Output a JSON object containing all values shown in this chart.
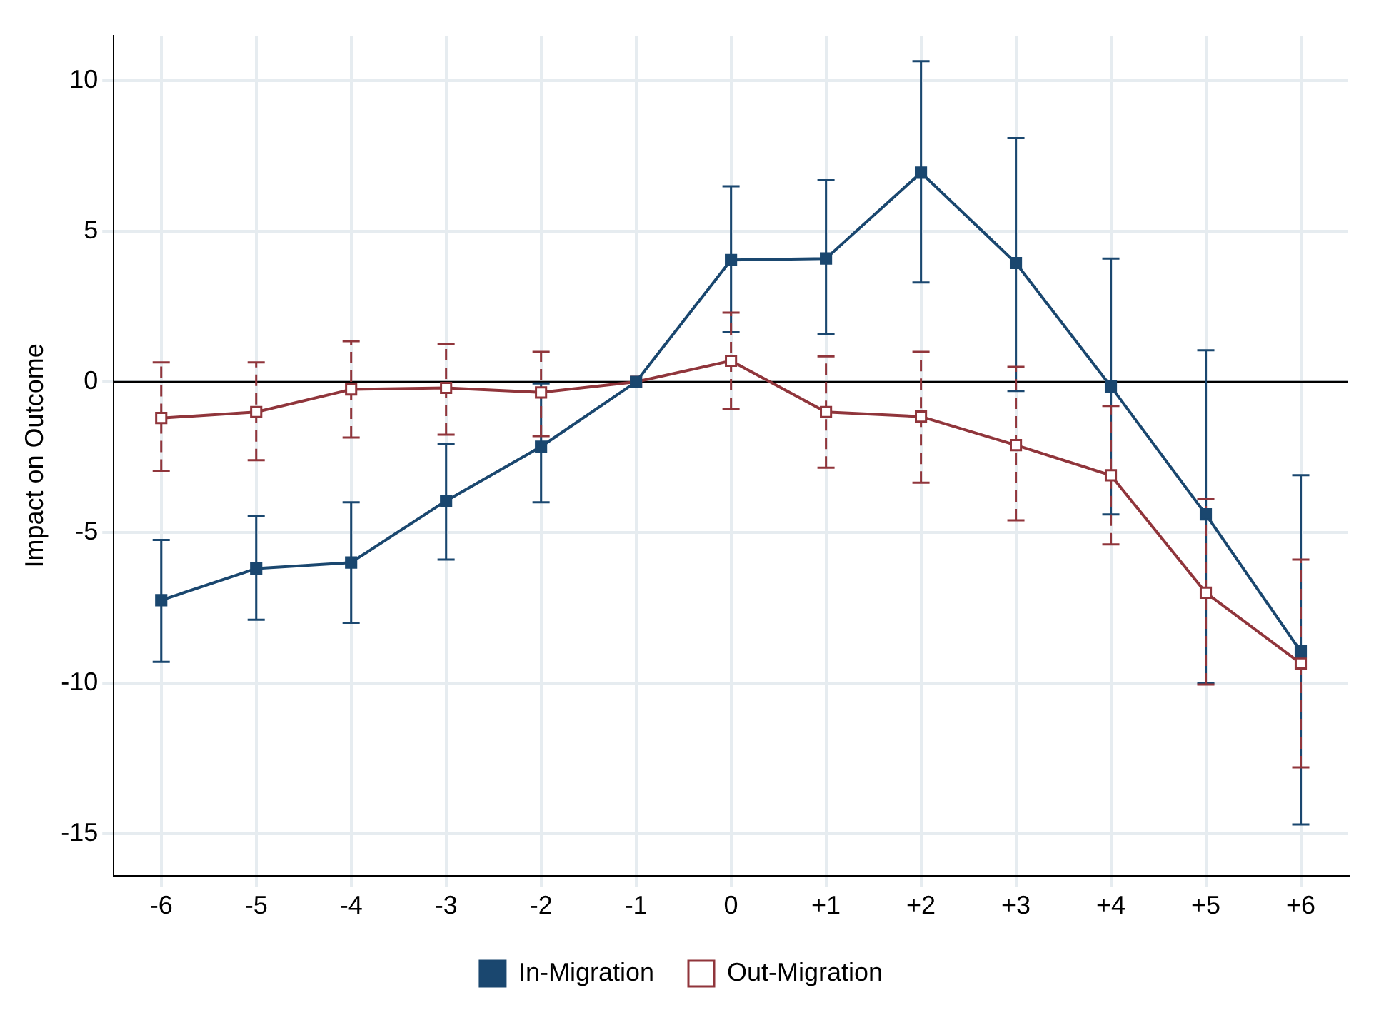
{
  "chart_data": {
    "type": "line",
    "ylabel": "Impact on Outcome",
    "categories": [
      "-6",
      "-5",
      "-4",
      "-3",
      "-2",
      "-1",
      "0",
      "+1",
      "+2",
      "+3",
      "+4",
      "+5",
      "+6"
    ],
    "series": [
      {
        "name": "In-Migration",
        "color": "#1a476f",
        "values": [
          -7.25,
          -6.2,
          -6.0,
          -3.95,
          -2.15,
          0,
          4.05,
          4.1,
          6.95,
          3.95,
          -0.15,
          -4.4,
          -8.95
        ],
        "errors": [
          [
            -9.3,
            -5.25
          ],
          [
            -7.9,
            -4.45
          ],
          [
            -8.0,
            -4.0
          ],
          [
            -5.9,
            -2.05
          ],
          [
            -4.0,
            -0.05
          ],
          null,
          [
            1.65,
            6.5
          ],
          [
            1.6,
            6.7
          ],
          [
            3.3,
            10.65
          ],
          [
            -0.3,
            8.1
          ],
          [
            -4.4,
            4.1
          ],
          [
            -10.0,
            1.05
          ],
          [
            -14.7,
            -3.1
          ]
        ]
      },
      {
        "name": "Out-Migration",
        "color": "#90353b",
        "values": [
          -1.2,
          -1.0,
          -0.25,
          -0.2,
          -0.35,
          0,
          0.7,
          -1.0,
          -1.15,
          -2.1,
          -3.1,
          -7.0,
          -9.35
        ],
        "errors": [
          [
            -2.95,
            0.65
          ],
          [
            -2.6,
            0.65
          ],
          [
            -1.85,
            1.35
          ],
          [
            -1.75,
            1.25
          ],
          [
            -1.8,
            1.0
          ],
          null,
          [
            -0.9,
            2.3
          ],
          [
            -2.85,
            0.85
          ],
          [
            -3.35,
            1.0
          ],
          [
            -4.6,
            0.5
          ],
          [
            -5.4,
            -0.8
          ],
          [
            -10.05,
            -3.9
          ],
          [
            -12.8,
            -5.9
          ]
        ]
      }
    ],
    "ylim": [
      -16.4,
      11.5
    ],
    "yticks": [
      -15,
      -10,
      -5,
      0,
      5,
      10
    ],
    "ref_lines": [
      {
        "axis": "y",
        "value": 0,
        "color": "#000000"
      }
    ],
    "grid": true,
    "legend": "bottom",
    "marker": "square",
    "line_style": "solid"
  }
}
